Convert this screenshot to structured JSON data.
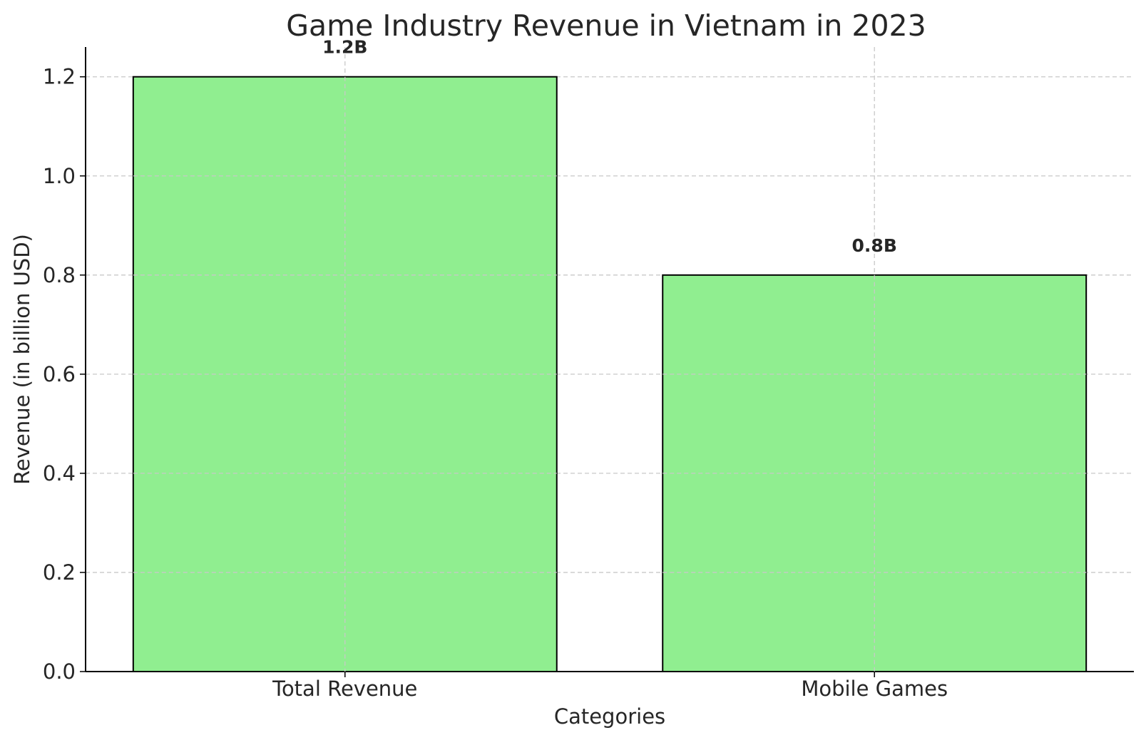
{
  "chart_data": {
    "type": "bar",
    "title": "Game Industry Revenue in Vietnam in 2023",
    "xlabel": "Categories",
    "ylabel": "Revenue (in billion USD)",
    "categories": [
      "Total Revenue",
      "Mobile Games"
    ],
    "values": [
      1.2,
      0.8
    ],
    "value_labels": [
      "1.2B",
      "0.8B"
    ],
    "ylim": [
      0,
      1.26
    ],
    "yticks": [
      0.0,
      0.2,
      0.4,
      0.6,
      0.8,
      1.0,
      1.2
    ],
    "ytick_labels": [
      "0.0",
      "0.2",
      "0.4",
      "0.6",
      "0.8",
      "1.0",
      "1.2"
    ],
    "grid": true,
    "bar_color": "#90ee90",
    "edge_color": "#000000"
  }
}
